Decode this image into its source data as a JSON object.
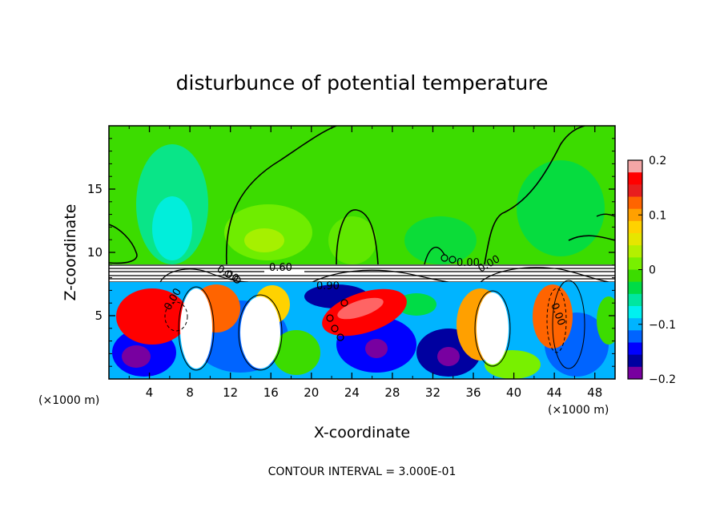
{
  "chart_data": {
    "type": "heatmap",
    "title": "disturbunce of potential temperature",
    "xlabel": "X-coordinate",
    "ylabel": "Z-coordinate",
    "x_unit_left": "(×1000 m)",
    "x_unit_right": "(×1000 m)",
    "xlim": [
      0,
      50
    ],
    "ylim": [
      0,
      20
    ],
    "x_ticks": [
      "4",
      "8",
      "12",
      "16",
      "20",
      "24",
      "28",
      "32",
      "36",
      "40",
      "44",
      "48"
    ],
    "y_ticks": [
      "5",
      "10",
      "15"
    ],
    "colorbar": {
      "range": [
        -0.2,
        0.2
      ],
      "ticks": [
        "0.2",
        "0.1",
        "0",
        "−0.1",
        "−0.2"
      ],
      "colors": [
        "#f4a6a6",
        "#ff0000",
        "#e81e1e",
        "#ff6400",
        "#ffa000",
        "#ffd200",
        "#e6e600",
        "#b4f000",
        "#78f000",
        "#3cdc00",
        "#00dc46",
        "#00e6a0",
        "#00f0f0",
        "#00b4ff",
        "#0064ff",
        "#0000ff",
        "#0000a0",
        "#7800a0"
      ]
    },
    "contour_labels": [
      "0.60",
      "0.90",
      "0.00",
      "0.00",
      "0.00",
      "0.00",
      "0.00"
    ],
    "footer": "CONTOUR INTERVAL = 3.000E-01"
  }
}
